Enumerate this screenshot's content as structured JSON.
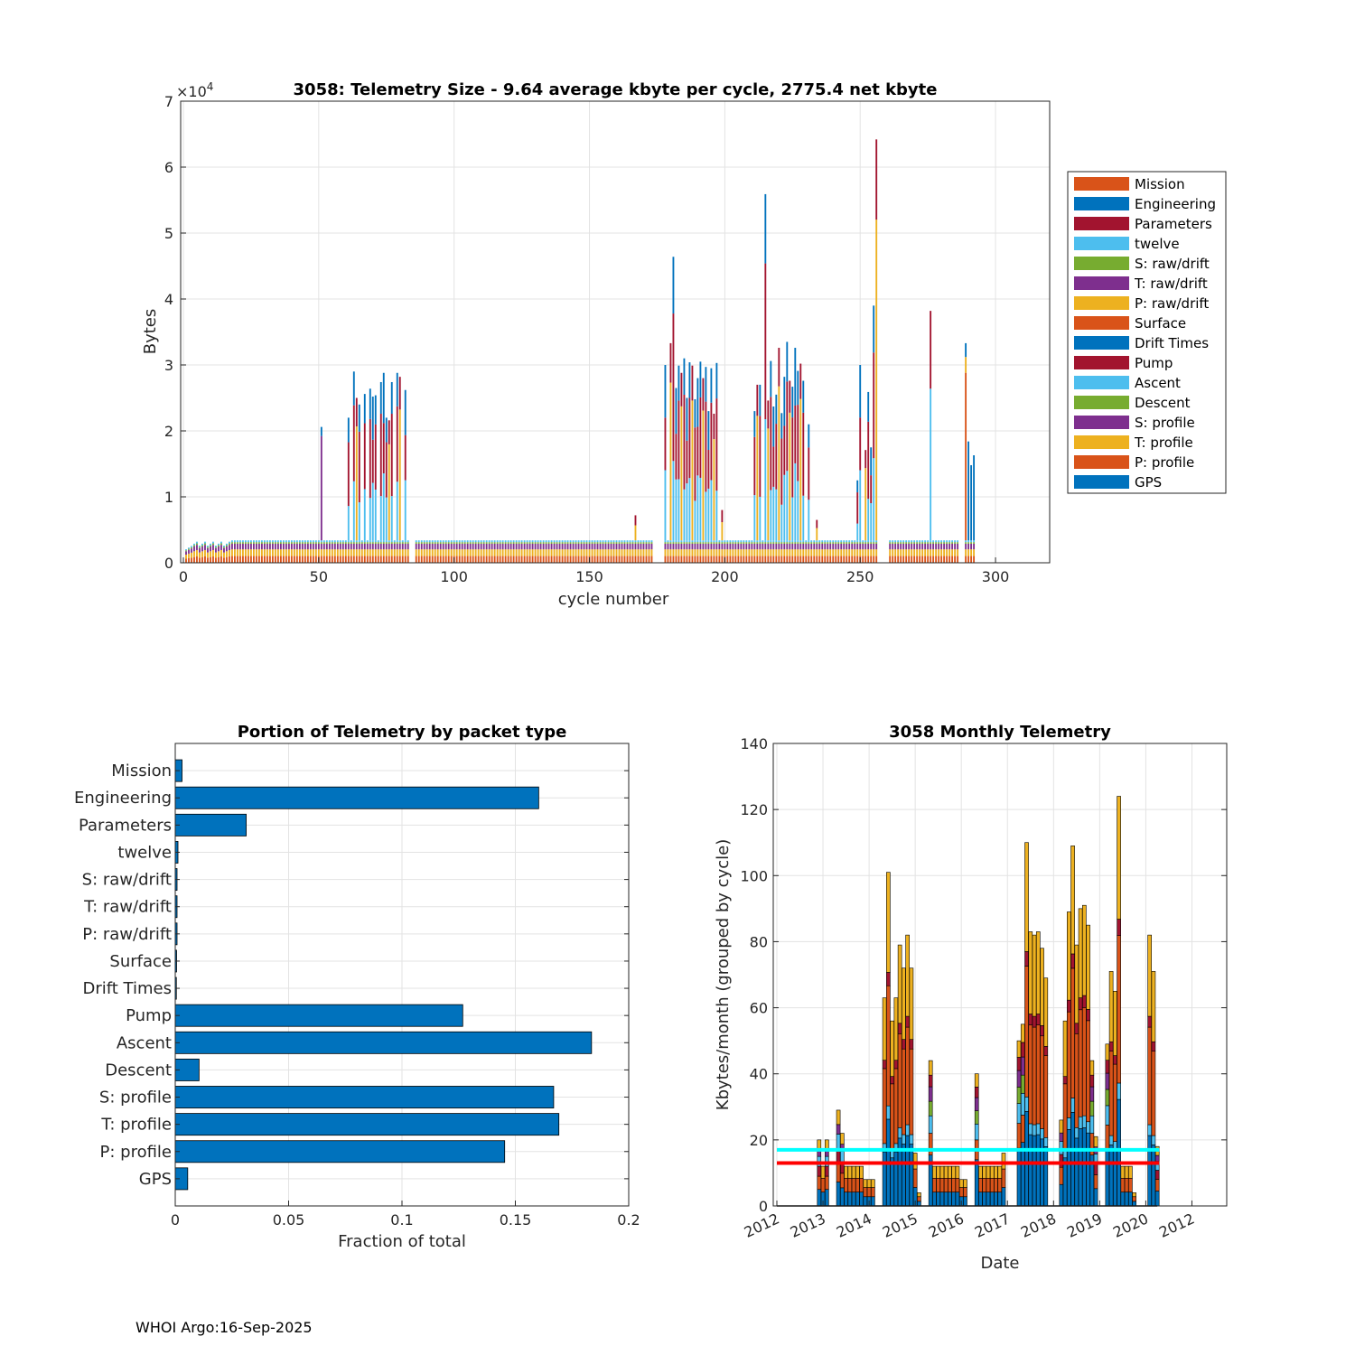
{
  "colors": {
    "orange": "#D95319",
    "blue": "#0072BD",
    "red": "#A2142F",
    "cyan": "#4DBEEE",
    "green": "#77AC30",
    "purple": "#7E2F8E",
    "yellow": "#EDB120"
  },
  "footer": "WHOI Argo:16-Sep-2025",
  "chart_data": [
    {
      "id": "telemetry_size",
      "type": "bar",
      "stacked": true,
      "title": "3058: Telemetry Size - 9.64 average kbyte per cycle, 2775.4 net kbyte",
      "xlabel": "cycle number",
      "ylabel": "Bytes",
      "y_exponent_label": "×10",
      "y_exponent": "4",
      "xlim": [
        -1,
        320
      ],
      "ylim": [
        0,
        70000
      ],
      "xticks": [
        "0",
        "50",
        "100",
        "150",
        "200",
        "250",
        "300"
      ],
      "xtick_values": [
        0,
        50,
        100,
        150,
        200,
        250,
        300
      ],
      "yticks": [
        "0",
        "1",
        "2",
        "3",
        "4",
        "5",
        "6",
        "7"
      ],
      "ytick_values": [
        0,
        10000,
        20000,
        30000,
        40000,
        50000,
        60000,
        70000
      ],
      "grid": true,
      "legend_position": "right",
      "legend": [
        {
          "name": "Mission",
          "color": "#D95319"
        },
        {
          "name": "Engineering",
          "color": "#0072BD"
        },
        {
          "name": "Parameters",
          "color": "#A2142F"
        },
        {
          "name": "twelve",
          "color": "#4DBEEE"
        },
        {
          "name": "S: raw/drift",
          "color": "#77AC30"
        },
        {
          "name": "T: raw/drift",
          "color": "#7E2F8E"
        },
        {
          "name": "P: raw/drift",
          "color": "#EDB120"
        },
        {
          "name": "Surface",
          "color": "#D95319"
        },
        {
          "name": "Drift Times",
          "color": "#0072BD"
        },
        {
          "name": "Pump",
          "color": "#A2142F"
        },
        {
          "name": "Ascent",
          "color": "#4DBEEE"
        },
        {
          "name": "Descent",
          "color": "#77AC30"
        },
        {
          "name": "S: profile",
          "color": "#7E2F8E"
        },
        {
          "name": "T: profile",
          "color": "#EDB120"
        },
        {
          "name": "P: profile",
          "color": "#D95319"
        },
        {
          "name": "GPS",
          "color": "#0072BD"
        }
      ],
      "spikes": [
        {
          "cycle": 51,
          "total": 20600
        },
        {
          "cycle": 61,
          "total": 22000
        },
        {
          "cycle": 63,
          "total": 29000
        },
        {
          "cycle": 64,
          "total": 25000
        },
        {
          "cycle": 65,
          "total": 24000
        },
        {
          "cycle": 67,
          "total": 25600
        },
        {
          "cycle": 69,
          "total": 26400
        },
        {
          "cycle": 70,
          "total": 25200
        },
        {
          "cycle": 71,
          "total": 25400
        },
        {
          "cycle": 73,
          "total": 27400
        },
        {
          "cycle": 74,
          "total": 28800
        },
        {
          "cycle": 75,
          "total": 22000
        },
        {
          "cycle": 76,
          "total": 21600
        },
        {
          "cycle": 77,
          "total": 27400
        },
        {
          "cycle": 79,
          "total": 28800
        },
        {
          "cycle": 80,
          "total": 28200
        },
        {
          "cycle": 82,
          "total": 26200
        },
        {
          "cycle": 167,
          "total": 7200
        },
        {
          "cycle": 178,
          "total": 30000
        },
        {
          "cycle": 180,
          "total": 33300
        },
        {
          "cycle": 181,
          "total": 46400
        },
        {
          "cycle": 182,
          "total": 26500
        },
        {
          "cycle": 183,
          "total": 29900
        },
        {
          "cycle": 184,
          "total": 28800
        },
        {
          "cycle": 185,
          "total": 31000
        },
        {
          "cycle": 186,
          "total": 25000
        },
        {
          "cycle": 187,
          "total": 30400
        },
        {
          "cycle": 188,
          "total": 29900
        },
        {
          "cycle": 189,
          "total": 24800
        },
        {
          "cycle": 190,
          "total": 28000
        },
        {
          "cycle": 191,
          "total": 30500
        },
        {
          "cycle": 192,
          "total": 28000
        },
        {
          "cycle": 193,
          "total": 29700
        },
        {
          "cycle": 194,
          "total": 23000
        },
        {
          "cycle": 195,
          "total": 29500
        },
        {
          "cycle": 196,
          "total": 22600
        },
        {
          "cycle": 197,
          "total": 30300
        },
        {
          "cycle": 199,
          "total": 8000
        },
        {
          "cycle": 211,
          "total": 23000
        },
        {
          "cycle": 212,
          "total": 27000
        },
        {
          "cycle": 213,
          "total": 27000
        },
        {
          "cycle": 215,
          "total": 55900
        },
        {
          "cycle": 216,
          "total": 24600
        },
        {
          "cycle": 217,
          "total": 30600
        },
        {
          "cycle": 218,
          "total": 23700
        },
        {
          "cycle": 219,
          "total": 25500
        },
        {
          "cycle": 220,
          "total": 32600
        },
        {
          "cycle": 221,
          "total": 22700
        },
        {
          "cycle": 222,
          "total": 28200
        },
        {
          "cycle": 223,
          "total": 33500
        },
        {
          "cycle": 224,
          "total": 27600
        },
        {
          "cycle": 225,
          "total": 26700
        },
        {
          "cycle": 226,
          "total": 32600
        },
        {
          "cycle": 227,
          "total": 29100
        },
        {
          "cycle": 228,
          "total": 30200
        },
        {
          "cycle": 229,
          "total": 27600
        },
        {
          "cycle": 231,
          "total": 21000
        },
        {
          "cycle": 234,
          "total": 6500
        },
        {
          "cycle": 249,
          "total": 12500
        },
        {
          "cycle": 250,
          "total": 30000
        },
        {
          "cycle": 252,
          "total": 17100
        },
        {
          "cycle": 253,
          "total": 25900
        },
        {
          "cycle": 254,
          "total": 17500
        },
        {
          "cycle": 255,
          "total": 39000
        },
        {
          "cycle": 256,
          "total": 64200
        },
        {
          "cycle": 276,
          "total": 38200
        },
        {
          "cycle": 289,
          "total": 33300
        },
        {
          "cycle": 290,
          "total": 18400
        },
        {
          "cycle": 291,
          "total": 14800
        },
        {
          "cycle": 292,
          "total": 16300
        }
      ],
      "baseline_bytes": 3400,
      "gaps_in_cycles": [
        [
          84,
          85
        ],
        [
          174,
          177
        ],
        [
          257,
          260
        ],
        [
          287,
          288
        ]
      ],
      "last_cycle": 292
    },
    {
      "id": "portion_by_packet",
      "type": "bar",
      "orientation": "horizontal",
      "title": "Portion of Telemetry by packet type",
      "xlabel": "Fraction of total",
      "xlim": [
        0,
        0.2
      ],
      "xticks": [
        "0",
        "0.05",
        "0.1",
        "0.15",
        "0.2"
      ],
      "xtick_values": [
        0,
        0.05,
        0.1,
        0.15,
        0.2
      ],
      "grid": true,
      "categories": [
        "Mission",
        "Engineering",
        "Parameters",
        "twelve",
        "S: raw/drift",
        "T: raw/drift",
        "P: raw/drift",
        "Surface",
        "Drift Times",
        "Pump",
        "Ascent",
        "Descent",
        "S: profile",
        "T: profile",
        "P: profile",
        "GPS"
      ],
      "values": [
        0.003,
        0.1603,
        0.0313,
        0.0012,
        0.0008,
        0.0008,
        0.0008,
        0.0006,
        0.0005,
        0.1268,
        0.1836,
        0.0105,
        0.1669,
        0.1692,
        0.1453,
        0.0055
      ],
      "color": "#0072BD"
    },
    {
      "id": "monthly_telemetry",
      "type": "bar",
      "stacked": true,
      "title": "3058 Monthly Telemetry",
      "xlabel": "Date",
      "ylabel": "Kbytes/month (grouped by cycle)",
      "ylim": [
        0,
        140
      ],
      "yticks": [
        "0",
        "20",
        "40",
        "60",
        "80",
        "100",
        "120",
        "140"
      ],
      "ytick_values": [
        0,
        20,
        40,
        60,
        80,
        100,
        120,
        140
      ],
      "xticks": [
        "2012",
        "2013",
        "2014",
        "2015",
        "2016",
        "2017",
        "2018",
        "2019",
        "2020",
        "2012"
      ],
      "xlim_months": [
        0,
        118
      ],
      "grid": true,
      "mean_line": {
        "value": 17,
        "color": "#00FFFF"
      },
      "median_line": {
        "value": 13,
        "color": "#FF0000"
      },
      "months": [
        {
          "m": 11,
          "v": 20
        },
        {
          "m": 12,
          "v": 12
        },
        {
          "m": 13,
          "v": 20
        },
        {
          "m": 16,
          "v": 29
        },
        {
          "m": 17,
          "v": 22
        },
        {
          "m": 18,
          "v": 12
        },
        {
          "m": 19,
          "v": 12
        },
        {
          "m": 20,
          "v": 12
        },
        {
          "m": 21,
          "v": 12
        },
        {
          "m": 22,
          "v": 12
        },
        {
          "m": 23,
          "v": 8
        },
        {
          "m": 24,
          "v": 8
        },
        {
          "m": 25,
          "v": 8
        },
        {
          "m": 28,
          "v": 63
        },
        {
          "m": 29,
          "v": 101
        },
        {
          "m": 30,
          "v": 56
        },
        {
          "m": 31,
          "v": 63
        },
        {
          "m": 32,
          "v": 79
        },
        {
          "m": 33,
          "v": 72
        },
        {
          "m": 34,
          "v": 82
        },
        {
          "m": 35,
          "v": 72
        },
        {
          "m": 36,
          "v": 16
        },
        {
          "m": 37,
          "v": 4
        },
        {
          "m": 40,
          "v": 44
        },
        {
          "m": 41,
          "v": 12
        },
        {
          "m": 42,
          "v": 12
        },
        {
          "m": 43,
          "v": 12
        },
        {
          "m": 44,
          "v": 12
        },
        {
          "m": 45,
          "v": 12
        },
        {
          "m": 46,
          "v": 12
        },
        {
          "m": 47,
          "v": 12
        },
        {
          "m": 48,
          "v": 8
        },
        {
          "m": 49,
          "v": 8
        },
        {
          "m": 52,
          "v": 40
        },
        {
          "m": 53,
          "v": 12
        },
        {
          "m": 54,
          "v": 12
        },
        {
          "m": 55,
          "v": 12
        },
        {
          "m": 56,
          "v": 12
        },
        {
          "m": 57,
          "v": 12
        },
        {
          "m": 58,
          "v": 12
        },
        {
          "m": 59,
          "v": 16
        },
        {
          "m": 63,
          "v": 50
        },
        {
          "m": 64,
          "v": 55
        },
        {
          "m": 65,
          "v": 110
        },
        {
          "m": 66,
          "v": 83
        },
        {
          "m": 67,
          "v": 82
        },
        {
          "m": 68,
          "v": 83
        },
        {
          "m": 69,
          "v": 78
        },
        {
          "m": 70,
          "v": 69
        },
        {
          "m": 74,
          "v": 26
        },
        {
          "m": 75,
          "v": 56
        },
        {
          "m": 76,
          "v": 89
        },
        {
          "m": 77,
          "v": 109
        },
        {
          "m": 78,
          "v": 79
        },
        {
          "m": 79,
          "v": 90
        },
        {
          "m": 80,
          "v": 91
        },
        {
          "m": 81,
          "v": 85
        },
        {
          "m": 82,
          "v": 44
        },
        {
          "m": 83,
          "v": 21
        },
        {
          "m": 86,
          "v": 49
        },
        {
          "m": 87,
          "v": 71
        },
        {
          "m": 88,
          "v": 65
        },
        {
          "m": 89,
          "v": 124
        },
        {
          "m": 90,
          "v": 12
        },
        {
          "m": 91,
          "v": 12
        },
        {
          "m": 92,
          "v": 12
        },
        {
          "m": 93,
          "v": 4
        },
        {
          "m": 97,
          "v": 82
        },
        {
          "m": 98,
          "v": 71
        },
        {
          "m": 99,
          "v": 18
        }
      ]
    }
  ]
}
